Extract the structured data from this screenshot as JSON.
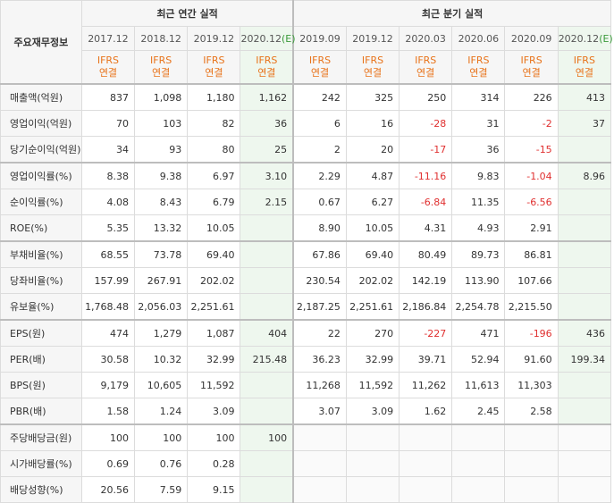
{
  "header": {
    "row_title": "주요재무정보",
    "annual_group": "최근 연간 실적",
    "quarter_group": "최근 분기 실적",
    "annual_periods": [
      {
        "label": "2017.12",
        "est": ""
      },
      {
        "label": "2018.12",
        "est": ""
      },
      {
        "label": "2019.12",
        "est": ""
      },
      {
        "label": "2020.12",
        "est": "(E)"
      }
    ],
    "quarter_periods": [
      {
        "label": "2019.09",
        "est": ""
      },
      {
        "label": "2019.12",
        "est": ""
      },
      {
        "label": "2020.03",
        "est": ""
      },
      {
        "label": "2020.06",
        "est": ""
      },
      {
        "label": "2020.09",
        "est": ""
      },
      {
        "label": "2020.12",
        "est": "(E)"
      }
    ],
    "ifrs_line1": "IFRS",
    "ifrs_line2": "연결"
  },
  "rows": [
    {
      "label": "매출액(억원)",
      "values": [
        "837",
        "1,098",
        "1,180",
        "1,162",
        "242",
        "325",
        "250",
        "314",
        "226",
        "413"
      ]
    },
    {
      "label": "영업이익(억원)",
      "values": [
        "70",
        "103",
        "82",
        "36",
        "6",
        "16",
        "-28",
        "31",
        "-2",
        "37"
      ]
    },
    {
      "label": "당기순이익(억원)",
      "values": [
        "34",
        "93",
        "80",
        "25",
        "2",
        "20",
        "-17",
        "36",
        "-15",
        ""
      ]
    },
    {
      "label": "영업이익률(%)",
      "values": [
        "8.38",
        "9.38",
        "6.97",
        "3.10",
        "2.29",
        "4.87",
        "-11.16",
        "9.83",
        "-1.04",
        "8.96"
      ]
    },
    {
      "label": "순이익률(%)",
      "values": [
        "4.08",
        "8.43",
        "6.79",
        "2.15",
        "0.67",
        "6.27",
        "-6.84",
        "11.35",
        "-6.56",
        ""
      ]
    },
    {
      "label": "ROE(%)",
      "values": [
        "5.35",
        "13.32",
        "10.05",
        "",
        "8.90",
        "10.05",
        "4.31",
        "4.93",
        "2.91",
        ""
      ]
    },
    {
      "label": "부채비율(%)",
      "values": [
        "68.55",
        "73.78",
        "69.40",
        "",
        "67.86",
        "69.40",
        "80.49",
        "89.73",
        "86.81",
        ""
      ]
    },
    {
      "label": "당좌비율(%)",
      "values": [
        "157.99",
        "267.91",
        "202.02",
        "",
        "230.54",
        "202.02",
        "142.19",
        "113.90",
        "107.66",
        ""
      ]
    },
    {
      "label": "유보율(%)",
      "values": [
        "1,768.48",
        "2,056.03",
        "2,251.61",
        "",
        "2,187.25",
        "2,251.61",
        "2,186.84",
        "2,254.78",
        "2,215.50",
        ""
      ]
    },
    {
      "label": "EPS(원)",
      "values": [
        "474",
        "1,279",
        "1,087",
        "404",
        "22",
        "270",
        "-227",
        "471",
        "-196",
        "436"
      ]
    },
    {
      "label": "PER(배)",
      "values": [
        "30.58",
        "10.32",
        "32.99",
        "215.48",
        "36.23",
        "32.99",
        "39.71",
        "52.94",
        "91.60",
        "199.34"
      ]
    },
    {
      "label": "BPS(원)",
      "values": [
        "9,179",
        "10,605",
        "11,592",
        "",
        "11,268",
        "11,592",
        "11,262",
        "11,613",
        "11,303",
        ""
      ]
    },
    {
      "label": "PBR(배)",
      "values": [
        "1.58",
        "1.24",
        "3.09",
        "",
        "3.07",
        "3.09",
        "1.62",
        "2.45",
        "2.58",
        ""
      ]
    },
    {
      "label": "주당배당금(원)",
      "values": [
        "100",
        "100",
        "100",
        "100",
        "",
        "",
        "",
        "",
        "",
        ""
      ]
    },
    {
      "label": "시가배당률(%)",
      "values": [
        "0.69",
        "0.76",
        "0.28",
        "",
        "",
        "",
        "",
        "",
        "",
        ""
      ]
    },
    {
      "label": "배당성향(%)",
      "values": [
        "20.56",
        "7.59",
        "9.15",
        "",
        "",
        "",
        "",
        "",
        "",
        ""
      ]
    }
  ],
  "colors": {
    "negative": "#e03030",
    "ifrs": "#e8731a",
    "estimate_bg": "#eef7ee"
  }
}
